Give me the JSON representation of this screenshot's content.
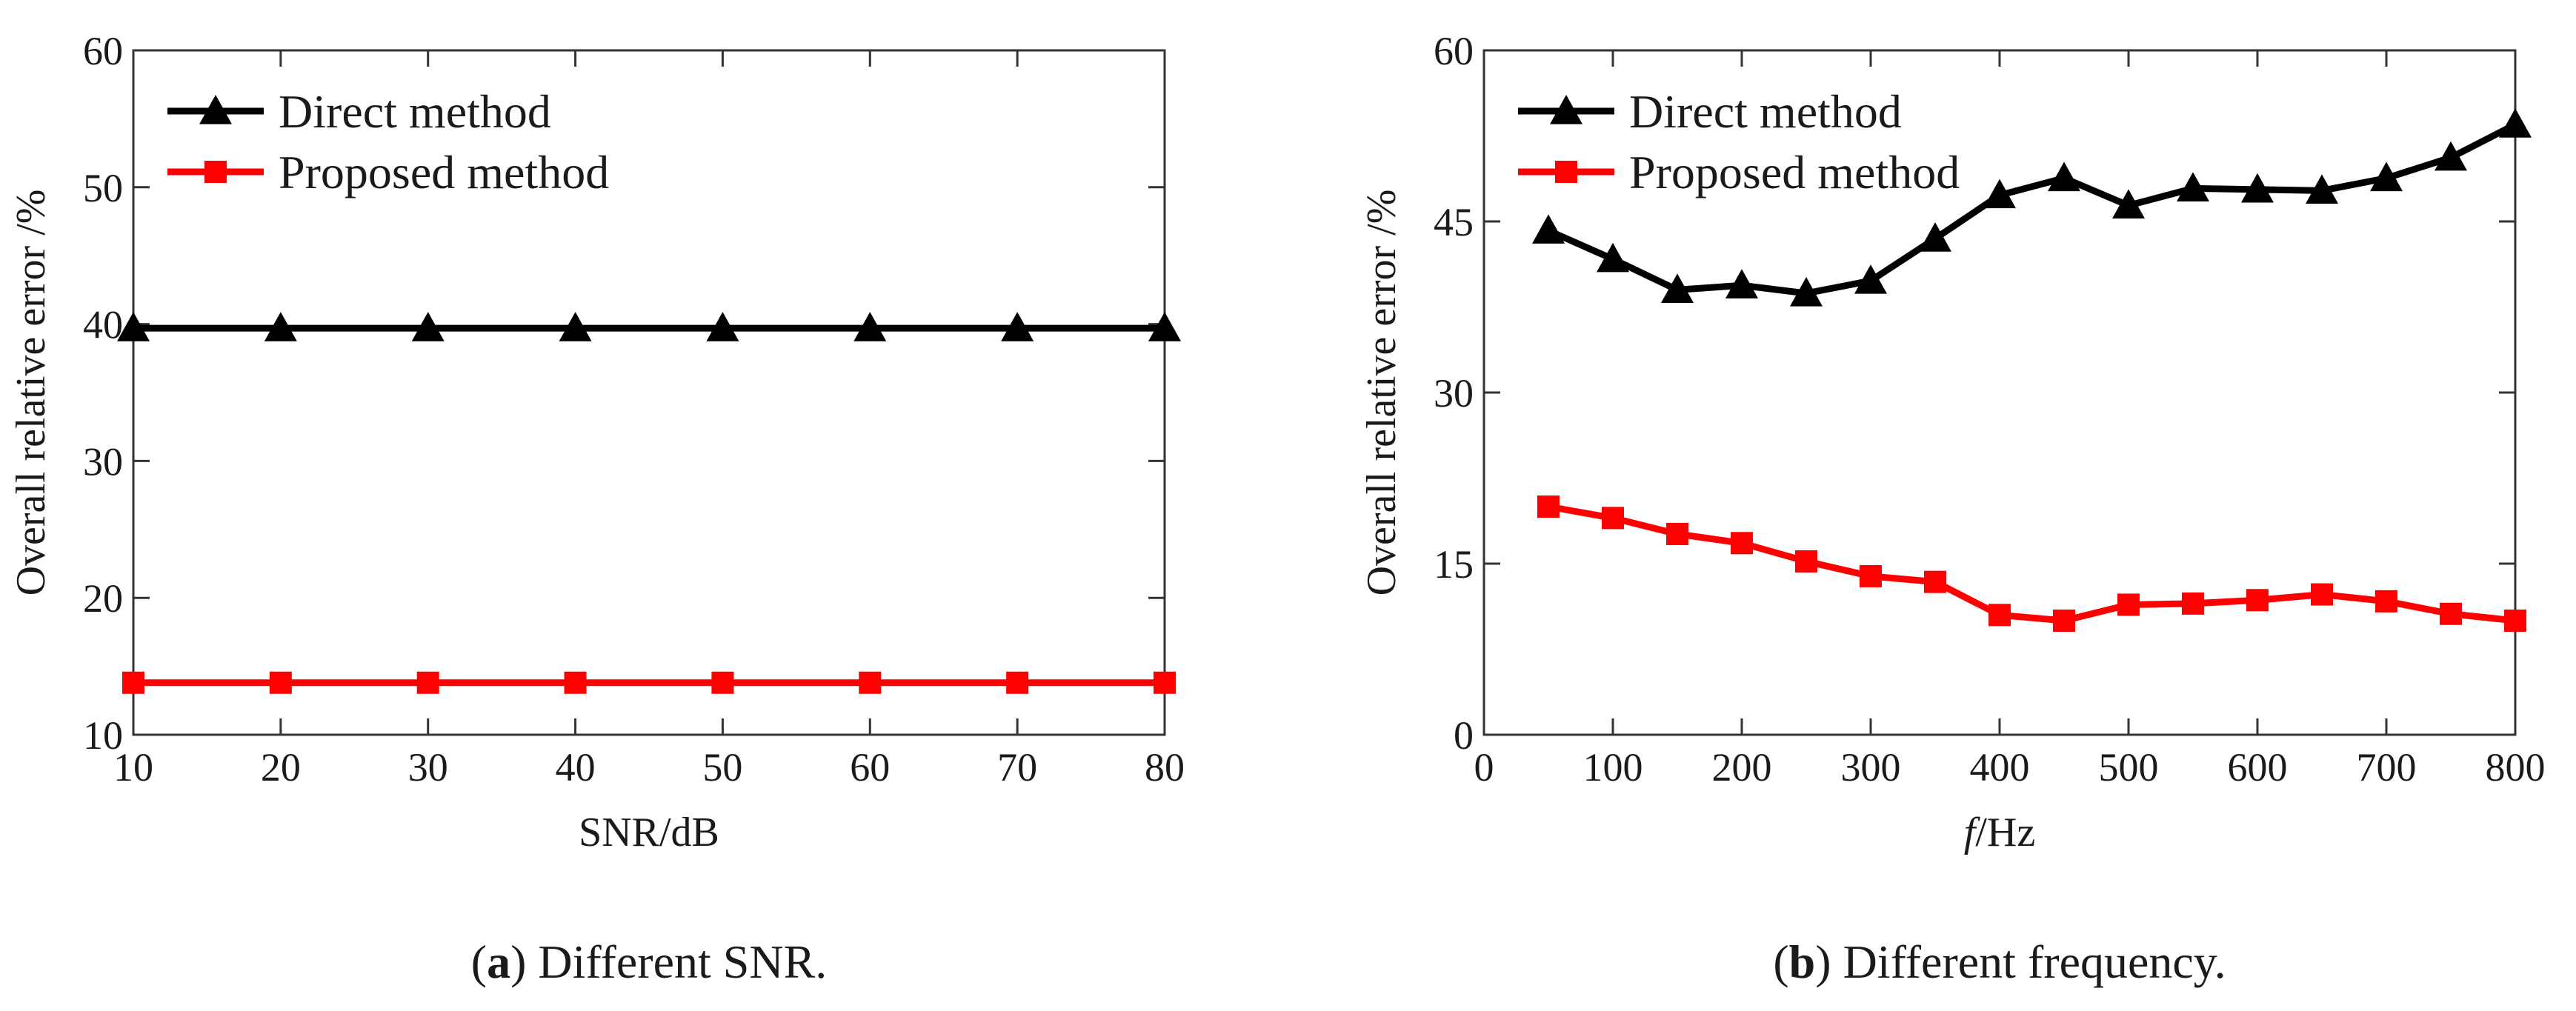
{
  "colors": {
    "direct": "#000000",
    "proposed": "#ff0000"
  },
  "chart_data": [
    {
      "type": "line",
      "caption": {
        "letter": "a",
        "text": ") Different SNR.",
        "open": "("
      },
      "xlabel": {
        "prefix": "",
        "italic": "",
        "suffix": "SNR/dB"
      },
      "ylabel": "Overall relative error /%",
      "xlim": [
        10,
        80
      ],
      "ylim": [
        10,
        60
      ],
      "xticks": [
        10,
        20,
        30,
        40,
        50,
        60,
        70,
        80
      ],
      "yticks": [
        10,
        20,
        30,
        40,
        50,
        60
      ],
      "x": [
        10,
        20,
        30,
        40,
        50,
        60,
        70,
        80
      ],
      "series": [
        {
          "name": "Direct method",
          "marker": "triangle",
          "color": "#000000",
          "values": [
            39.7,
            39.7,
            39.7,
            39.7,
            39.7,
            39.7,
            39.7,
            39.7
          ]
        },
        {
          "name": "Proposed method",
          "marker": "square",
          "color": "#ff0000",
          "values": [
            13.8,
            13.8,
            13.8,
            13.8,
            13.8,
            13.8,
            13.8,
            13.8
          ]
        }
      ],
      "legend": "top-left"
    },
    {
      "type": "line",
      "caption": {
        "letter": "b",
        "text": ") Different frequency.",
        "open": "("
      },
      "xlabel": {
        "prefix": "",
        "italic": "f",
        "suffix": "/Hz"
      },
      "ylabel": "Overall relative error /%",
      "xlim": [
        0,
        800
      ],
      "ylim": [
        0,
        60
      ],
      "xticks": [
        0,
        100,
        200,
        300,
        400,
        500,
        600,
        700,
        800
      ],
      "yticks": [
        0,
        15,
        30,
        45,
        60
      ],
      "x": [
        50,
        100,
        150,
        200,
        250,
        300,
        350,
        400,
        450,
        500,
        550,
        600,
        650,
        700,
        750,
        800
      ],
      "series": [
        {
          "name": "Direct method",
          "marker": "triangle",
          "color": "#000000",
          "values": [
            44.2,
            41.7,
            39.0,
            39.4,
            38.7,
            39.8,
            43.5,
            47.3,
            48.8,
            46.4,
            47.9,
            47.8,
            47.7,
            48.8,
            50.6,
            53.5
          ]
        },
        {
          "name": "Proposed method",
          "marker": "square",
          "color": "#ff0000",
          "values": [
            20.0,
            19.0,
            17.6,
            16.8,
            15.2,
            13.9,
            13.4,
            10.5,
            10.0,
            11.4,
            11.5,
            11.8,
            12.3,
            11.7,
            10.6,
            10.0
          ]
        }
      ],
      "legend": "top-left"
    }
  ]
}
